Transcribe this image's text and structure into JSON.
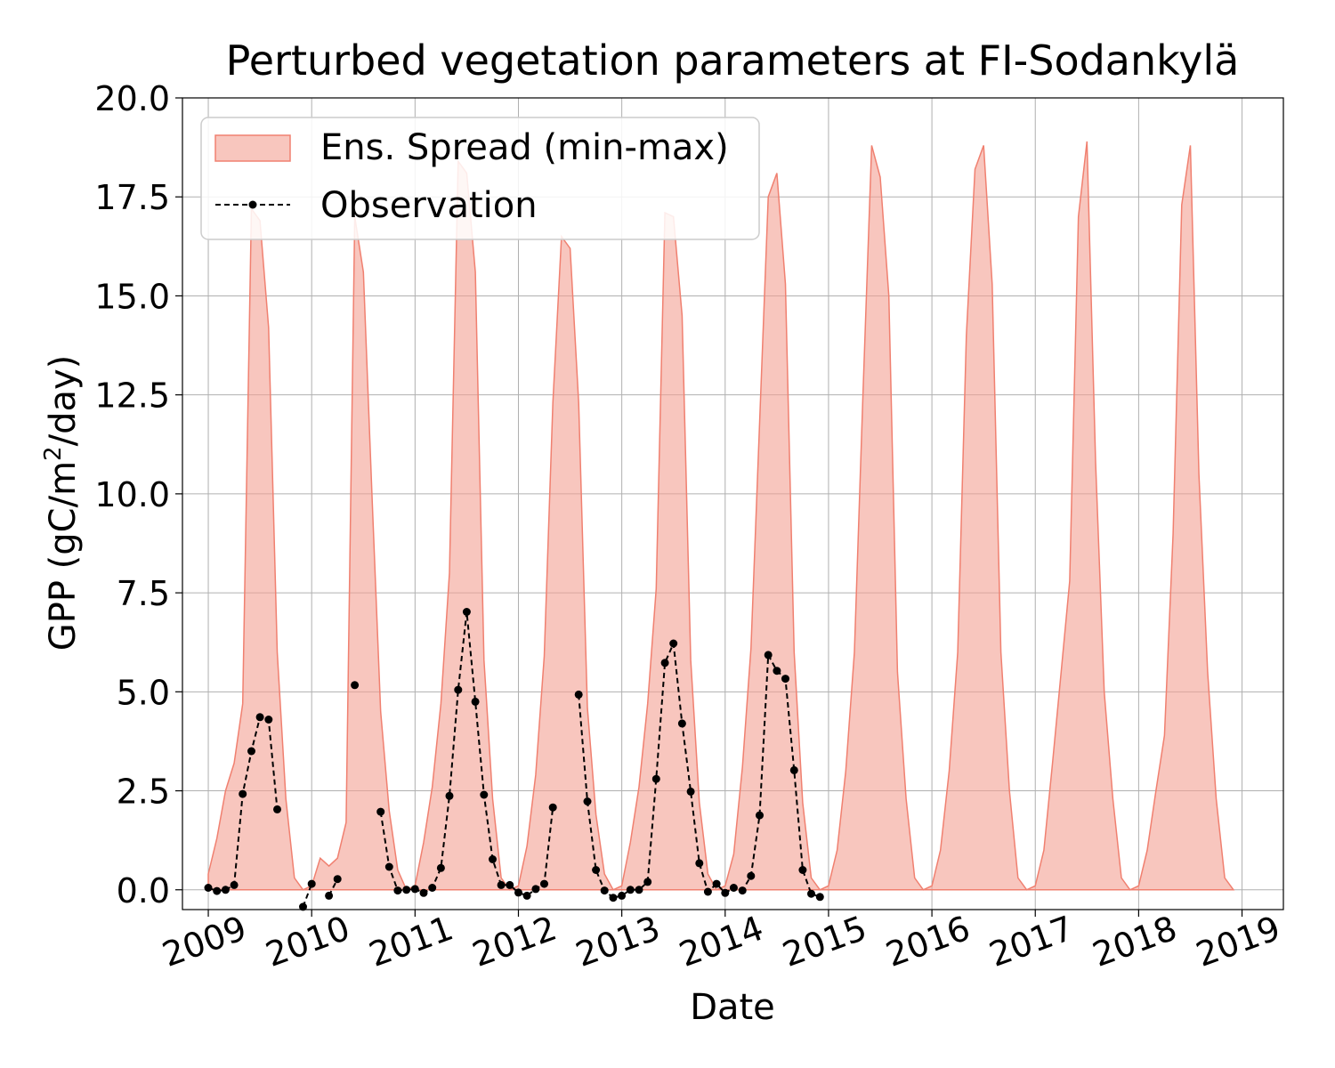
{
  "chart_data": {
    "type": "area",
    "title": "Perturbed vegetation parameters at FI-Sodankylä",
    "xlabel": "Date",
    "ylabel": "GPP  (gC/m²/day)",
    "ylabel_parts": {
      "main": "GPP  (gC/m",
      "sup": "2",
      "tail": "/day)"
    },
    "xlim": [
      2008.75,
      2019.4
    ],
    "ylim": [
      -0.5,
      20.0
    ],
    "xticks": [
      2009,
      2010,
      2011,
      2012,
      2013,
      2014,
      2015,
      2016,
      2017,
      2018,
      2019
    ],
    "xtick_labels": [
      "2009",
      "2010",
      "2011",
      "2012",
      "2013",
      "2014",
      "2015",
      "2016",
      "2017",
      "2018",
      "2019"
    ],
    "yticks": [
      0.0,
      2.5,
      5.0,
      7.5,
      10.0,
      12.5,
      15.0,
      17.5,
      20.0
    ],
    "ytick_labels": [
      "0.0",
      "2.5",
      "5.0",
      "7.5",
      "10.0",
      "12.5",
      "15.0",
      "17.5",
      "20.0"
    ],
    "grid": true,
    "legend_position": "top-left",
    "colors": {
      "spread_fill": "#f4a093",
      "spread_edge": "#f08070",
      "observation": "#000000",
      "grid": "#b0b0b0"
    },
    "legend": [
      {
        "label": "Ens. Spread (min-max)",
        "kind": "fill"
      },
      {
        "label": "Observation",
        "kind": "line-marker"
      }
    ],
    "series": [
      {
        "name": "Ens. Spread (min-max)",
        "kind": "band",
        "x": [
          2009.0,
          2009.083,
          2009.167,
          2009.25,
          2009.333,
          2009.417,
          2009.5,
          2009.583,
          2009.667,
          2009.75,
          2009.833,
          2009.917,
          2010.0,
          2010.083,
          2010.167,
          2010.25,
          2010.333,
          2010.417,
          2010.5,
          2010.583,
          2010.667,
          2010.75,
          2010.833,
          2010.917,
          2011.0,
          2011.083,
          2011.167,
          2011.25,
          2011.333,
          2011.417,
          2011.5,
          2011.583,
          2011.667,
          2011.75,
          2011.833,
          2011.917,
          2012.0,
          2012.083,
          2012.167,
          2012.25,
          2012.333,
          2012.417,
          2012.5,
          2012.583,
          2012.667,
          2012.75,
          2012.833,
          2012.917,
          2013.0,
          2013.083,
          2013.167,
          2013.25,
          2013.333,
          2013.417,
          2013.5,
          2013.583,
          2013.667,
          2013.75,
          2013.833,
          2013.917,
          2014.0,
          2014.083,
          2014.167,
          2014.25,
          2014.333,
          2014.417,
          2014.5,
          2014.583,
          2014.667,
          2014.75,
          2014.833,
          2014.917,
          2015.0,
          2015.083,
          2015.167,
          2015.25,
          2015.333,
          2015.417,
          2015.5,
          2015.583,
          2015.667,
          2015.75,
          2015.833,
          2015.917,
          2016.0,
          2016.083,
          2016.167,
          2016.25,
          2016.333,
          2016.417,
          2016.5,
          2016.583,
          2016.667,
          2016.75,
          2016.833,
          2016.917,
          2017.0,
          2017.083,
          2017.167,
          2017.25,
          2017.333,
          2017.417,
          2017.5,
          2017.583,
          2017.667,
          2017.75,
          2017.833,
          2017.917,
          2018.0,
          2018.083,
          2018.167,
          2018.25,
          2018.333,
          2018.417,
          2018.5,
          2018.583,
          2018.667,
          2018.75,
          2018.833,
          2018.917
        ],
        "upper": [
          0.4,
          1.3,
          2.5,
          3.2,
          4.7,
          17.2,
          16.9,
          14.2,
          6.0,
          2.3,
          0.3,
          0.0,
          0.1,
          0.8,
          0.6,
          0.8,
          1.7,
          17.0,
          15.6,
          10.0,
          4.5,
          2.0,
          0.5,
          0.0,
          0.1,
          1.2,
          2.6,
          4.7,
          8.0,
          18.4,
          18.1,
          15.6,
          5.8,
          2.3,
          0.3,
          0.0,
          0.1,
          1.1,
          2.9,
          5.9,
          12.3,
          16.5,
          16.2,
          12.3,
          4.6,
          1.9,
          0.4,
          0.0,
          0.1,
          1.2,
          2.6,
          4.7,
          7.6,
          17.1,
          17.0,
          14.5,
          5.8,
          2.2,
          0.4,
          0.0,
          0.1,
          0.9,
          3.1,
          6.1,
          11.8,
          17.5,
          18.1,
          15.3,
          6.0,
          2.2,
          0.3,
          0.0,
          0.1,
          1.0,
          3.0,
          6.0,
          12.5,
          18.8,
          18.0,
          15.0,
          5.5,
          2.3,
          0.3,
          0.0,
          0.1,
          1.0,
          3.0,
          6.0,
          14.0,
          18.2,
          18.8,
          15.3,
          6.0,
          2.5,
          0.3,
          0.0,
          0.1,
          1.0,
          3.2,
          5.5,
          7.8,
          17.0,
          18.9,
          10.8,
          5.0,
          2.3,
          0.3,
          0.0,
          0.1,
          1.0,
          2.5,
          3.9,
          9.0,
          17.3,
          18.8,
          10.5,
          5.5,
          2.3,
          0.3,
          0.0
        ],
        "lower": 0.0
      },
      {
        "name": "Observation",
        "kind": "line",
        "segments": [
          {
            "x": [
              2009.0,
              2009.083,
              2009.167,
              2009.25,
              2009.333,
              2009.417,
              2009.5,
              2009.583,
              2009.667
            ],
            "y": [
              0.05,
              -0.03,
              0.0,
              0.12,
              2.42,
              3.5,
              4.36,
              4.3,
              2.03
            ]
          },
          {
            "x": [
              2009.917,
              2010.0
            ],
            "y": [
              -0.43,
              0.15
            ]
          },
          {
            "x": [
              2010.167,
              2010.25
            ],
            "y": [
              -0.15,
              0.27
            ]
          },
          {
            "x": [
              2010.417
            ],
            "y": [
              5.17
            ]
          },
          {
            "x": [
              2010.667,
              2010.75,
              2010.833,
              2010.917,
              2011.0,
              2011.083,
              2011.167,
              2011.25,
              2011.333,
              2011.417,
              2011.5,
              2011.583,
              2011.667,
              2011.75,
              2011.833,
              2011.917,
              2012.0,
              2012.083,
              2012.167,
              2012.25,
              2012.333
            ],
            "y": [
              1.97,
              0.58,
              -0.02,
              0.0,
              0.02,
              -0.08,
              0.05,
              0.55,
              2.37,
              5.05,
              7.02,
              4.75,
              2.4,
              0.77,
              0.12,
              0.12,
              -0.07,
              -0.15,
              0.02,
              0.15,
              2.08
            ]
          },
          {
            "x": [
              2012.583,
              2012.667,
              2012.75,
              2012.833,
              2012.917,
              2013.0,
              2013.083,
              2013.167,
              2013.25,
              2013.333,
              2013.417,
              2013.5,
              2013.583,
              2013.667,
              2013.75,
              2013.833,
              2013.917,
              2014.0,
              2014.083,
              2014.167,
              2014.25,
              2014.333,
              2014.417,
              2014.5,
              2014.583,
              2014.667,
              2014.75,
              2014.833,
              2014.917
            ],
            "y": [
              4.93,
              2.23,
              0.5,
              -0.02,
              -0.2,
              -0.15,
              0.0,
              0.0,
              0.2,
              2.8,
              5.73,
              6.22,
              4.2,
              2.48,
              0.67,
              -0.05,
              0.15,
              -0.08,
              0.05,
              -0.02,
              0.35,
              1.88,
              5.93,
              5.53,
              5.33,
              3.02,
              0.5,
              -0.1,
              -0.18
            ]
          }
        ]
      }
    ]
  }
}
